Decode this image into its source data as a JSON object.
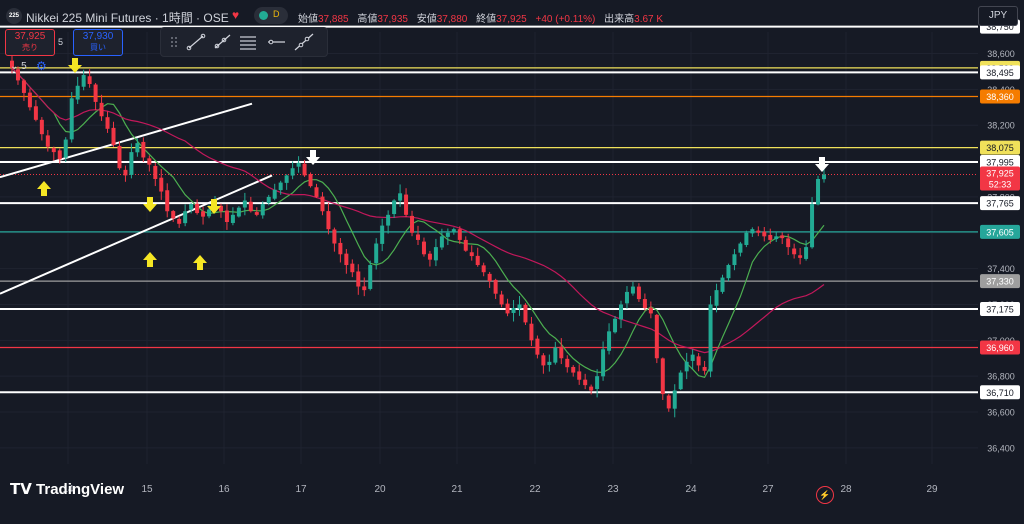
{
  "header": {
    "symbol_badge": "225",
    "symbol_title": "Nikkei 225 Mini Futures · 1時間 · OSE",
    "status_letter": "D",
    "open_label": "始値",
    "open_value": "37,885",
    "high_label": "高値",
    "high_value": "37,935",
    "low_label": "安値",
    "low_value": "37,880",
    "close_label": "終値",
    "close_value": "37,925",
    "change": "+40 (+0.11%)",
    "volume_label": "出来高",
    "volume_value": "3.67 K",
    "currency": "JPY"
  },
  "trade": {
    "sell_price": "37,925",
    "sell_label": "売り",
    "spread": "5",
    "buy_price": "37,930",
    "buy_label": "買い"
  },
  "indicator": {
    "collapse_label": "5"
  },
  "toolbar": {
    "icons": [
      "drag-handle-icon",
      "trend-line-icon",
      "ray-icon",
      "fib-lines-icon",
      "horizontal-ray-icon",
      "extended-line-icon"
    ]
  },
  "brand": {
    "logo_text": "TradingView"
  },
  "colors": {
    "up": "#22ab94",
    "down": "#f23645",
    "bg": "#161a25",
    "grid": "#1f2330",
    "ma_fast": "#4caf50",
    "ma_slow": "#c2185b",
    "yellow": "#f0e15a",
    "arrow": "#f5e624"
  },
  "chart_data": {
    "type": "candlestick",
    "x_tick_labels": [
      "14",
      "15",
      "16",
      "17",
      "20",
      "21",
      "22",
      "23",
      "24",
      "27",
      "28",
      "29"
    ],
    "y_tick_labels": [
      "36,400",
      "36,600",
      "36,800",
      "37,000",
      "37,200",
      "37,400",
      "37,600",
      "37,800",
      "38,000",
      "38,200",
      "38,400",
      "38,600"
    ],
    "ylim": [
      36310,
      38720
    ],
    "last_price": {
      "value": 37925,
      "label": "37,925",
      "countdown": "52:33"
    },
    "horizontal_levels": [
      {
        "value": 38750,
        "label": "38,750",
        "color": "#ffffff"
      },
      {
        "value": 38520,
        "label": "38,520",
        "color": "#f0e15a"
      },
      {
        "value": 38495,
        "label": "38,495",
        "color": "#ffffff"
      },
      {
        "value": 38360,
        "label": "38,360",
        "color": "#f57c00"
      },
      {
        "value": 38075,
        "label": "38,075",
        "color": "#f0e15a"
      },
      {
        "value": 37995,
        "label": "37,995",
        "color": "#ffffff"
      },
      {
        "value": 37765,
        "label": "37,765",
        "color": "#ffffff"
      },
      {
        "value": 37605,
        "label": "37,605",
        "color": "#26a69a"
      },
      {
        "value": 37330,
        "label": "37,330",
        "color": "#9e9e9e"
      },
      {
        "value": 37175,
        "label": "37,175",
        "color": "#ffffff"
      },
      {
        "value": 36960,
        "label": "36,960",
        "color": "#f23645"
      },
      {
        "value": 36710,
        "label": "36,710",
        "color": "#ffffff"
      }
    ],
    "channel_lines": [
      {
        "from": [
          "13 night",
          37910
        ],
        "to": [
          "16 night",
          38320
        ]
      },
      {
        "from": [
          "13 night",
          37260
        ],
        "to": [
          "16 night",
          37920
        ]
      }
    ],
    "closes": [
      38520,
      38450,
      38380,
      38300,
      38230,
      38150,
      38080,
      38050,
      38010,
      38120,
      38350,
      38420,
      38480,
      38430,
      38330,
      38250,
      38180,
      38090,
      37960,
      37920,
      38050,
      38100,
      38020,
      37980,
      37900,
      37830,
      37720,
      37680,
      37650,
      37720,
      37760,
      37710,
      37690,
      37730,
      37760,
      37720,
      37660,
      37700,
      37740,
      37780,
      37720,
      37700,
      37760,
      37800,
      37840,
      37880,
      37920,
      37960,
      37990,
      37920,
      37860,
      37800,
      37720,
      37620,
      37540,
      37480,
      37420,
      37380,
      37300,
      37280,
      37420,
      37540,
      37640,
      37700,
      37780,
      37820,
      37700,
      37600,
      37560,
      37480,
      37450,
      37520,
      37580,
      37600,
      37620,
      37560,
      37500,
      37470,
      37420,
      37380,
      37330,
      37260,
      37200,
      37150,
      37180,
      37200,
      37100,
      37000,
      36920,
      36860,
      36880,
      36960,
      36900,
      36850,
      36820,
      36780,
      36750,
      36720,
      36800,
      36950,
      37050,
      37120,
      37200,
      37270,
      37300,
      37230,
      37180,
      37150,
      36900,
      36700,
      36620,
      36720,
      36820,
      36880,
      36920,
      36860,
      36830,
      37200,
      37280,
      37350,
      37420,
      37480,
      37540,
      37600,
      37620,
      37600,
      37580,
      37560,
      37580,
      37570,
      37520,
      37480,
      37460,
      37520,
      37760,
      37900,
      37925
    ]
  }
}
